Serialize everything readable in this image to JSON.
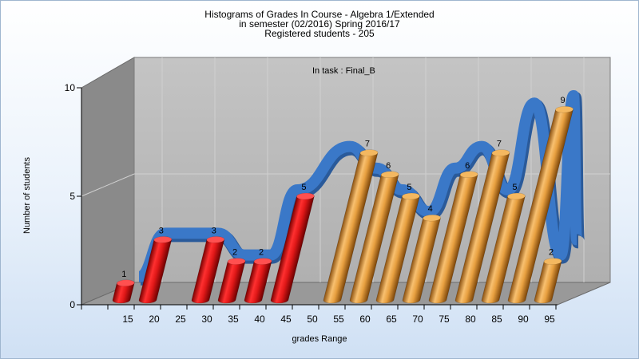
{
  "chart_data": {
    "type": "bar",
    "title_lines": [
      "Histograms of Grades  In Course - Algebra 1/Extended",
      "in semester  (02/2016) Spring 2016/17",
      "Registered students - 205"
    ],
    "annotation": "In task : Final_B",
    "xlabel": "grades Range",
    "ylabel": "Number of students",
    "categories": [
      "15",
      "20",
      "25",
      "30",
      "35",
      "40",
      "45",
      "50",
      "55",
      "60",
      "65",
      "70",
      "75",
      "80",
      "85",
      "90",
      "95"
    ],
    "values": [
      1,
      3,
      0,
      3,
      2,
      2,
      5,
      0,
      7,
      6,
      5,
      4,
      6,
      7,
      5,
      9,
      2
    ],
    "ylim": [
      0,
      10
    ],
    "yticks": [
      0,
      5,
      10
    ],
    "bar_style": "3d-cylinder",
    "colors": {
      "below_50": "#e01818",
      "from_55": "#e8a040",
      "trend_line": "#3a78c8",
      "back_wall": "#b4b4b4",
      "side_wall": "#8a8a8a",
      "floor": "#999999"
    },
    "grid": true
  }
}
